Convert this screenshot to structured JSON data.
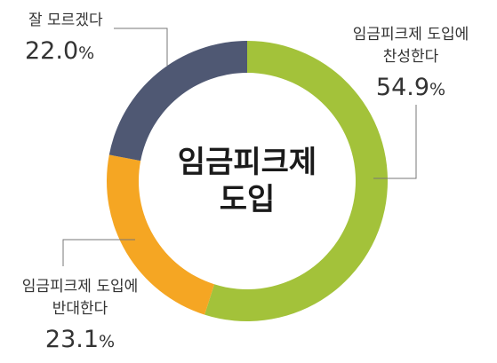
{
  "chart_data": {
    "type": "pie",
    "variant": "donut",
    "title": "임금피크제 도입",
    "title_lines": [
      "임금피크제",
      "도입"
    ],
    "slices": [
      {
        "label": "임금피크제 도입에 찬성한다",
        "label_lines": [
          "임금피크제 도입에",
          "찬성한다"
        ],
        "value": 54.9,
        "value_text": "54.9",
        "color": "#a3c23a"
      },
      {
        "label": "임금피크제 도입에 반대한다",
        "label_lines": [
          "임금피크제 도입에",
          "반대한다"
        ],
        "value": 23.1,
        "value_text": "23.1",
        "color": "#f5a623"
      },
      {
        "label": "잘 모르겠다",
        "label_lines": [
          "잘 모르겠다"
        ],
        "value": 22.0,
        "value_text": "22.0",
        "color": "#4f5873"
      }
    ],
    "unit": "%"
  }
}
